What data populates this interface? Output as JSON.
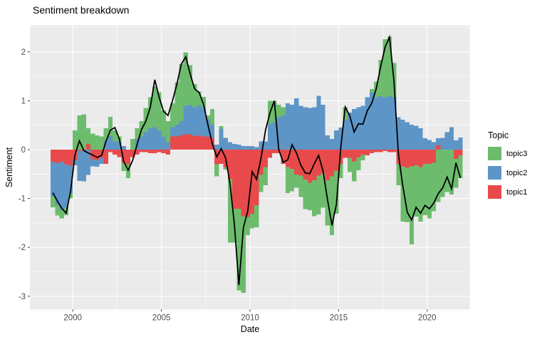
{
  "title": "Sentiment breakdown",
  "chart_data": {
    "type": "bar",
    "subtype": "stacked-quarterly-bars-with-black-line-overlay",
    "title": "Sentiment breakdown",
    "xlabel": "Date",
    "ylabel": "Sentiment",
    "panel_bg": "#EBEBEB",
    "grid_color": "#FFFFFF",
    "tick_text_color": "#4D4D4D",
    "tick_mark_color": "#333333",
    "xlim": [
      1997.58,
      2022.4
    ],
    "ylim": [
      -3.27,
      2.544
    ],
    "x_major_ticks": [
      2000,
      2005,
      2010,
      2015,
      2020
    ],
    "x_minor_gridlines": [
      2002.5,
      2007.5,
      2012.5,
      2017.5
    ],
    "y_major_ticks": [
      2,
      1,
      0,
      -1,
      -2,
      -3
    ],
    "y_minor_gridlines": [
      2.5,
      1.5,
      0.5,
      -0.5,
      -1.5,
      -2.5
    ],
    "bar_start_year": 1998.75,
    "bar_step_years": 0.25,
    "legend": {
      "title": "Topic",
      "position": "right",
      "items": [
        {
          "label": "topic3",
          "color": "#6DBC6E"
        },
        {
          "label": "topic2",
          "color": "#5E95C7"
        },
        {
          "label": "topic1",
          "color": "#E84A4C"
        }
      ]
    },
    "categories": [
      "1998 Q4",
      "1999 Q1",
      "1999 Q2",
      "1999 Q3",
      "1999 Q4",
      "2000 Q1",
      "2000 Q2",
      "2000 Q3",
      "2000 Q4",
      "2001 Q1",
      "2001 Q2",
      "2001 Q3",
      "2001 Q4",
      "2002 Q1",
      "2002 Q2",
      "2002 Q3",
      "2002 Q4",
      "2003 Q1",
      "2003 Q2",
      "2003 Q3",
      "2003 Q4",
      "2004 Q1",
      "2004 Q2",
      "2004 Q3",
      "2004 Q4",
      "2005 Q1",
      "2005 Q2",
      "2005 Q3",
      "2005 Q4",
      "2006 Q1",
      "2006 Q2",
      "2006 Q3",
      "2006 Q4",
      "2007 Q1",
      "2007 Q2",
      "2007 Q3",
      "2007 Q4",
      "2008 Q1",
      "2008 Q2",
      "2008 Q3",
      "2008 Q4",
      "2009 Q1",
      "2009 Q2",
      "2009 Q3",
      "2009 Q4",
      "2010 Q1",
      "2010 Q2",
      "2010 Q3",
      "2010 Q4",
      "2011 Q1",
      "2011 Q2",
      "2011 Q3",
      "2011 Q4",
      "2012 Q1",
      "2012 Q2",
      "2012 Q3",
      "2012 Q4",
      "2013 Q1",
      "2013 Q2",
      "2013 Q3",
      "2013 Q4",
      "2014 Q1",
      "2014 Q2",
      "2014 Q3",
      "2014 Q4",
      "2015 Q1",
      "2015 Q2",
      "2015 Q3",
      "2015 Q4",
      "2016 Q1",
      "2016 Q2",
      "2016 Q3",
      "2016 Q4",
      "2017 Q1",
      "2017 Q2",
      "2017 Q3",
      "2017 Q4",
      "2018 Q1",
      "2018 Q2",
      "2018 Q3",
      "2018 Q4",
      "2019 Q1",
      "2019 Q2",
      "2019 Q3",
      "2019 Q4",
      "2020 Q1",
      "2020 Q2",
      "2020 Q3",
      "2020 Q4",
      "2021 Q1",
      "2021 Q2",
      "2021 Q3",
      "2021 Q4"
    ],
    "series": [
      {
        "name": "topic1",
        "color": "#E84A4C",
        "values": [
          -0.25,
          -0.28,
          -0.25,
          -0.3,
          -0.33,
          -0.22,
          -0.02,
          -0.02,
          0.12,
          -0.2,
          -0.21,
          -0.17,
          -0.29,
          -0.05,
          -0.1,
          -0.15,
          -0.27,
          -0.3,
          -0.15,
          -0.1,
          -0.05,
          -0.05,
          -0.07,
          -0.07,
          -0.05,
          -0.07,
          -0.1,
          0.27,
          0.27,
          0.29,
          0.31,
          0.31,
          0.28,
          0.29,
          0.27,
          0.27,
          0.23,
          -0.3,
          -0.29,
          -0.36,
          -0.6,
          -1.21,
          -1.21,
          -1.36,
          -1.38,
          -1.31,
          -1.14,
          -0.51,
          -0.36,
          -0.17,
          -0.07,
          -0.07,
          -0.29,
          -0.36,
          -0.39,
          -0.51,
          -0.53,
          -0.61,
          -0.68,
          -0.63,
          -0.53,
          -0.49,
          -0.63,
          -0.55,
          -0.44,
          -0.29,
          -0.17,
          -0.17,
          -0.24,
          -0.15,
          -0.1,
          -0.12,
          -0.07,
          -0.05,
          -0.05,
          -0.03,
          -0.05,
          -0.05,
          -0.29,
          -0.34,
          -0.37,
          -0.34,
          -0.32,
          -0.36,
          -0.29,
          -0.29,
          -0.27,
          0.09,
          0.0,
          0.0,
          0.0,
          -0.19,
          -0.12
        ]
      },
      {
        "name": "topic2",
        "color": "#5E95C7",
        "values": [
          -0.71,
          -0.85,
          -0.99,
          -0.89,
          -0.57,
          -0.1,
          -0.62,
          -0.63,
          -0.52,
          -0.14,
          -0.14,
          -0.12,
          0.19,
          0.28,
          0.17,
          0.16,
          0.07,
          0.0,
          0.0,
          0.22,
          0.27,
          0.36,
          0.44,
          0.46,
          0.39,
          0.27,
          0.15,
          0.19,
          0.24,
          0.29,
          0.59,
          0.6,
          0.59,
          0.62,
          0.58,
          0.36,
          0.28,
          0.1,
          0.43,
          0.24,
          0.15,
          0.12,
          0.1,
          0.07,
          0.07,
          0.07,
          0.05,
          0.17,
          0.17,
          0.53,
          0.56,
          0.66,
          0.7,
          0.95,
          0.92,
          1.05,
          0.9,
          0.87,
          0.85,
          0.87,
          1.1,
          0.92,
          0.29,
          0.22,
          0.39,
          0.45,
          0.61,
          0.76,
          0.83,
          0.87,
          0.9,
          1.07,
          1.17,
          1.07,
          1.09,
          1.07,
          1.09,
          1.07,
          0.66,
          0.61,
          0.56,
          0.51,
          0.49,
          0.44,
          0.23,
          0.2,
          0.15,
          0.14,
          0.24,
          0.36,
          0.46,
          0.19,
          0.25
        ]
      },
      {
        "name": "topic3",
        "color": "#6DBC6E",
        "values": [
          -0.22,
          -0.22,
          -0.17,
          -0.15,
          -0.1,
          0.39,
          0.7,
          0.72,
          0.32,
          0.33,
          0.29,
          0.27,
          0.25,
          0.39,
          0.22,
          0.11,
          -0.17,
          -0.28,
          0.22,
          0.22,
          0.31,
          0.49,
          0.63,
          0.83,
          0.78,
          0.53,
          0.43,
          0.49,
          0.87,
          1.17,
          1.09,
          0.82,
          0.47,
          0.28,
          0.23,
          0.07,
          0.32,
          -0.25,
          0.05,
          -0.05,
          -1.3,
          -0.69,
          -1.67,
          -1.57,
          -0.37,
          -0.3,
          -0.45,
          -0.36,
          -0.37,
          0.47,
          0.44,
          0.26,
          0.17,
          -0.53,
          -0.46,
          -0.27,
          -0.44,
          -0.61,
          -0.56,
          -0.73,
          -0.8,
          -0.7,
          -0.92,
          -1.2,
          -0.87,
          -0.29,
          0.26,
          -0.29,
          -0.41,
          -0.27,
          -0.12,
          0.0,
          0.07,
          0.32,
          0.75,
          1.19,
          1.22,
          0.7,
          -0.44,
          -1.13,
          -1.12,
          -1.6,
          -1.05,
          -1.11,
          -1.05,
          -1.12,
          -0.99,
          -1.07,
          -0.97,
          -0.87,
          -0.92,
          -0.59,
          -0.46
        ]
      }
    ],
    "line_overlay": {
      "name": "net sentiment line",
      "color": "#000000",
      "values": [
        -0.88,
        -1.05,
        -1.2,
        -1.3,
        -0.85,
        -0.1,
        0.18,
        -0.02,
        -0.07,
        -0.11,
        -0.16,
        -0.12,
        0.17,
        0.4,
        0.45,
        0.22,
        -0.24,
        -0.42,
        -0.22,
        0.1,
        0.41,
        0.58,
        0.87,
        1.43,
        1.07,
        0.78,
        0.7,
        1.0,
        1.34,
        1.75,
        1.9,
        1.55,
        1.24,
        1.17,
        0.93,
        0.51,
        0.12,
        -0.15,
        0.02,
        -0.17,
        -0.7,
        -1.55,
        -2.77,
        -1.6,
        -1.25,
        -0.45,
        -0.61,
        -0.17,
        0.4,
        0.75,
        1.0,
        0.0,
        -0.26,
        -0.21,
        0.1,
        -0.07,
        -0.32,
        -0.48,
        -0.49,
        -0.29,
        -0.12,
        -0.44,
        -1.02,
        -1.55,
        -1.12,
        0.05,
        0.87,
        0.7,
        0.36,
        0.53,
        0.52,
        0.8,
        0.95,
        1.25,
        1.7,
        2.1,
        2.3,
        1.41,
        -0.1,
        -0.75,
        -1.28,
        -1.44,
        -1.18,
        -1.3,
        -1.14,
        -1.21,
        -1.09,
        -0.9,
        -0.78,
        -0.56,
        -0.8,
        -0.27,
        -0.58
      ]
    }
  }
}
